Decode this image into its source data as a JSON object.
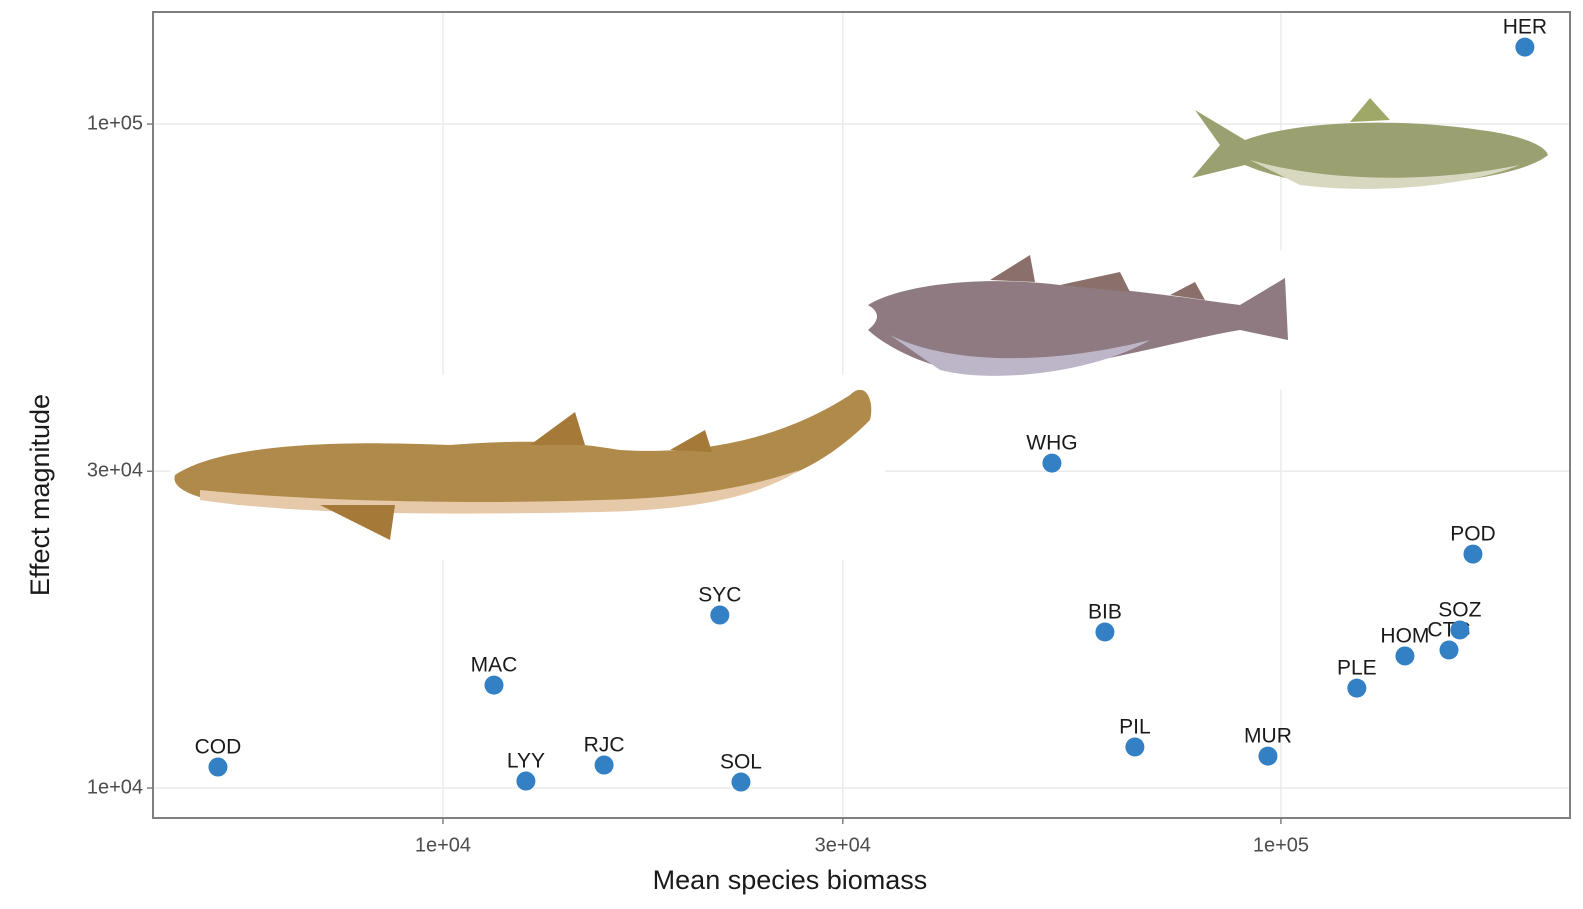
{
  "chart_data": {
    "type": "scatter",
    "x_label": "Mean species biomass",
    "y_label": "Effect magnitude",
    "log_x": true,
    "log_y": true,
    "grid": true,
    "color": "#3380c4",
    "labels": [
      "COD",
      "MAC",
      "LYY",
      "RJC",
      "SYC",
      "SOL",
      "WHG",
      "BIB",
      "PIL",
      "MUR",
      "PLE",
      "HOM",
      "CTC",
      "SOZ",
      "POD",
      "HER"
    ],
    "x": [
      5389,
      11505,
      12560,
      15570,
      21400,
      22680,
      53300,
      61660,
      66950,
      96500,
      123200,
      140600,
      158700,
      163500,
      169500,
      195500
    ],
    "values": [
      10755,
      14290,
      10245,
      10830,
      18220,
      10210,
      30860,
      17180,
      11530,
      11170,
      14140,
      15810,
      16140,
      17300,
      22510,
      130600
    ],
    "xlim": [
      4508,
      221300
    ],
    "ylim": [
      9013,
      147500
    ],
    "xticks": [
      {
        "value": 10000,
        "label": "1e+04"
      },
      {
        "value": 30000,
        "label": "3e+04"
      },
      {
        "value": 100000,
        "label": "1e+05"
      }
    ],
    "yticks": [
      {
        "value": 10000,
        "label": "1e+04"
      },
      {
        "value": 30000,
        "label": "3e+04"
      },
      {
        "value": 100000,
        "label": "1e+05"
      }
    ]
  }
}
